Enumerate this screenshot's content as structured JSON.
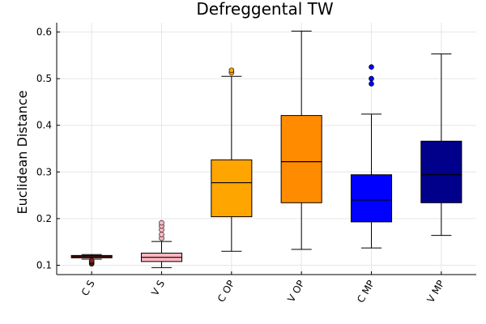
{
  "chart_data": {
    "type": "box",
    "title": "Defreggental TW",
    "xlabel": "",
    "ylabel": "Euclidean Distance",
    "ylim": [
      0.08,
      0.62
    ],
    "yticks": [
      0.1,
      0.2,
      0.3,
      0.4,
      0.5,
      0.6
    ],
    "ytick_labels": [
      "0.1",
      "0.2",
      "0.3",
      "0.4",
      "0.5",
      "0.6"
    ],
    "grid": true,
    "legend": "none",
    "categories": [
      "C S",
      "V S",
      "C OP",
      "V OP",
      "C MP",
      "V MP"
    ],
    "boxes": [
      {
        "category": "C S",
        "color": "#8b1c1c",
        "whisker_low": 0.113,
        "q1": 0.116,
        "median": 0.118,
        "q3": 0.121,
        "whisker_high": 0.123,
        "outliers": [
          0.103,
          0.106,
          0.108,
          0.11
        ]
      },
      {
        "category": "V S",
        "color": "#ffb6c1",
        "whisker_low": 0.095,
        "q1": 0.108,
        "median": 0.117,
        "q3": 0.126,
        "whisker_high": 0.151,
        "outliers": [
          0.158,
          0.166,
          0.176,
          0.184,
          0.191
        ]
      },
      {
        "category": "C OP",
        "color": "#ffa500",
        "whisker_low": 0.13,
        "q1": 0.204,
        "median": 0.277,
        "q3": 0.326,
        "whisker_high": 0.505,
        "outliers": [
          0.513,
          0.518
        ]
      },
      {
        "category": "V OP",
        "color": "#ff8c00",
        "whisker_low": 0.134,
        "q1": 0.234,
        "median": 0.322,
        "q3": 0.421,
        "whisker_high": 0.602,
        "outliers": []
      },
      {
        "category": "C MP",
        "color": "#0000ff",
        "whisker_low": 0.137,
        "q1": 0.193,
        "median": 0.24,
        "q3": 0.294,
        "whisker_high": 0.424,
        "outliers": [
          0.489,
          0.5,
          0.525
        ]
      },
      {
        "category": "V MP",
        "color": "#00008b",
        "whisker_low": 0.164,
        "q1": 0.234,
        "median": 0.294,
        "q3": 0.366,
        "whisker_high": 0.553,
        "outliers": []
      }
    ]
  }
}
